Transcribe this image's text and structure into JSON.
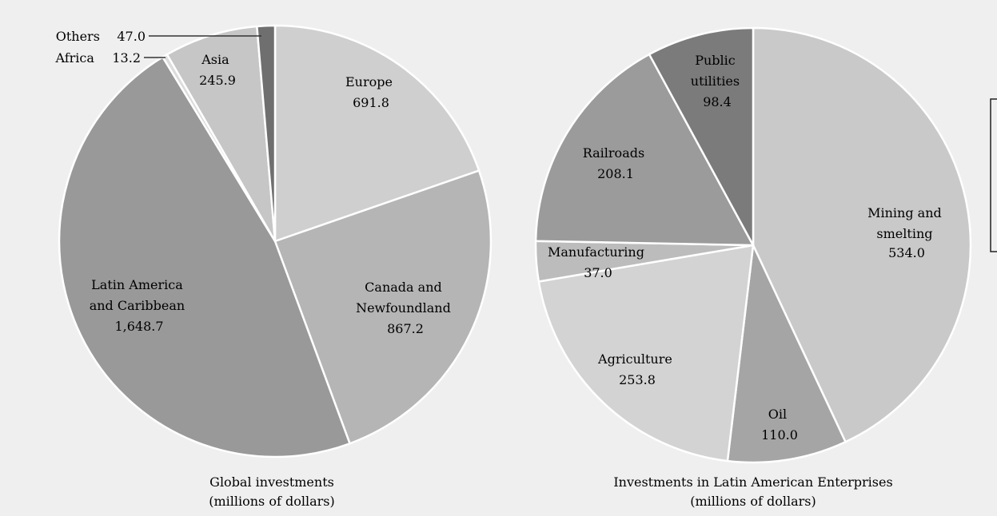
{
  "chart_data": [
    {
      "type": "pie",
      "title": "Global investments",
      "subtitle": "(millions of dollars)",
      "slices": [
        {
          "label": "Europe",
          "value": 691.8,
          "value_text": "691.8",
          "color": "#cfcfcf"
        },
        {
          "label": "Canada and Newfoundland",
          "value": 867.2,
          "value_text": "867.2",
          "color": "#b5b5b5"
        },
        {
          "label": "Latin America and Caribbean",
          "value": 1648.7,
          "value_text": "1,648.7",
          "color": "#999999"
        },
        {
          "label": "Africa",
          "value": 13.2,
          "value_text": "13.2",
          "color": "#dcdcdc"
        },
        {
          "label": "Asia",
          "value": 245.9,
          "value_text": "245.9",
          "color": "#c6c6c6"
        },
        {
          "label": "Others",
          "value": 47.0,
          "value_text": "47.0",
          "color": "#6f6f6f"
        }
      ]
    },
    {
      "type": "pie",
      "title": "Investments in Latin American Enterprises",
      "subtitle": "(millions of dollars)",
      "slices": [
        {
          "label": "Mining and smelting",
          "value": 534.0,
          "value_text": "534.0",
          "color": "#c9c9c9"
        },
        {
          "label": "Oil",
          "value": 110.0,
          "value_text": "110.0",
          "color": "#a5a5a5"
        },
        {
          "label": "Agriculture",
          "value": 253.8,
          "value_text": "253.8",
          "color": "#d3d3d3"
        },
        {
          "label": "Manufacturing",
          "value": 37.0,
          "value_text": "37.0",
          "color": "#bcbcbc"
        },
        {
          "label": "Railroads",
          "value": 208.1,
          "value_text": "208.1",
          "color": "#9b9b9b"
        },
        {
          "label": "Public utilities",
          "value": 98.4,
          "value_text": "98.4",
          "color": "#7b7b7b"
        }
      ]
    }
  ],
  "colors": {
    "background": "#efefef",
    "slice_border": "#ffffff",
    "text": "#222222"
  }
}
